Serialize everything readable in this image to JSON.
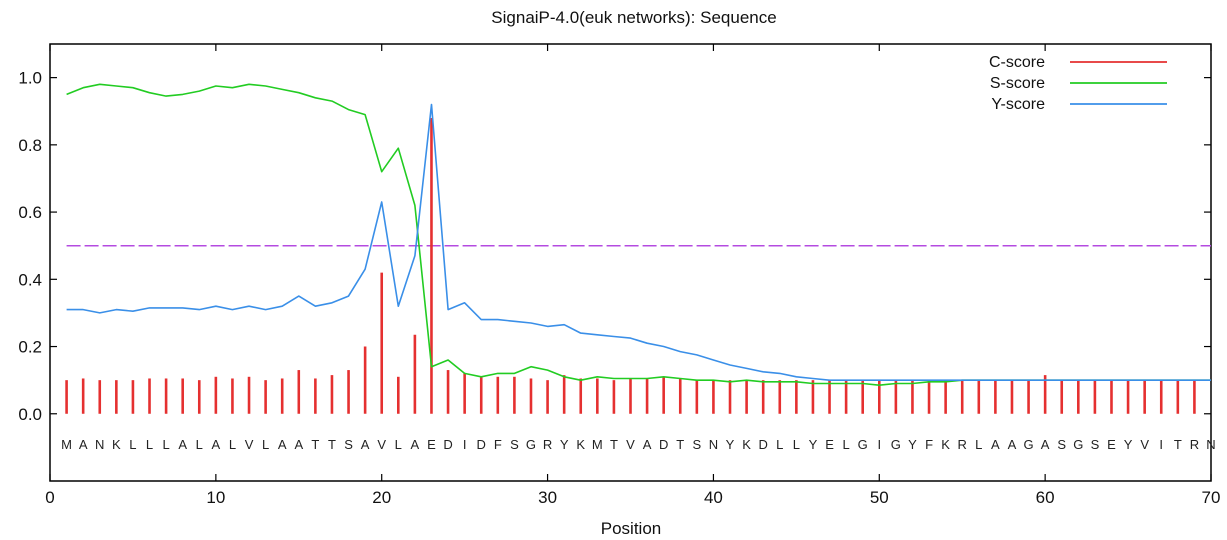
{
  "chart_data": {
    "type": "line",
    "title": "SignaiP-4.0(euk networks): Sequence",
    "xlabel": "Position",
    "ylabel": "",
    "xlim": [
      0,
      70
    ],
    "ylim": [
      -0.2,
      1.1
    ],
    "xticks": [
      0,
      10,
      20,
      30,
      40,
      50,
      60,
      70
    ],
    "yticks": [
      0.0,
      0.2,
      0.4,
      0.6,
      0.8,
      1.0
    ],
    "ytick_labels": [
      "0.0",
      "0.2",
      "0.4",
      "0.6",
      "0.8",
      "1.0"
    ],
    "grid": false,
    "legend_position": "top-right",
    "threshold": 0.5,
    "sequence": [
      "M",
      "A",
      "N",
      "K",
      "L",
      "L",
      "L",
      "A",
      "L",
      "A",
      "L",
      "V",
      "L",
      "A",
      "A",
      "T",
      "T",
      "S",
      "A",
      "V",
      "L",
      "A",
      "E",
      "D",
      "I",
      "D",
      "F",
      "S",
      "G",
      "R",
      "Y",
      "K",
      "M",
      "T",
      "V",
      "A",
      "D",
      "T",
      "S",
      "N",
      "Y",
      "K",
      "D",
      "L",
      "L",
      "Y",
      "E",
      "L",
      "G",
      "I",
      "G",
      "Y",
      "F",
      "K",
      "R",
      "L",
      "A",
      "A",
      "G",
      "A",
      "S",
      "G",
      "S",
      "E",
      "Y",
      "V",
      "I",
      "T",
      "R",
      "N"
    ],
    "series": [
      {
        "name": "C-score",
        "kind": "bar",
        "color": "#e53030",
        "x": [
          1,
          2,
          3,
          4,
          5,
          6,
          7,
          8,
          9,
          10,
          11,
          12,
          13,
          14,
          15,
          16,
          17,
          18,
          19,
          20,
          21,
          22,
          23,
          24,
          25,
          26,
          27,
          28,
          29,
          30,
          31,
          32,
          33,
          34,
          35,
          36,
          37,
          38,
          39,
          40,
          41,
          42,
          43,
          44,
          45,
          46,
          47,
          48,
          49,
          50,
          51,
          52,
          53,
          54,
          55,
          56,
          57,
          58,
          59,
          60,
          61,
          62,
          63,
          64,
          65,
          66,
          67,
          68,
          69
        ],
        "values": [
          0.1,
          0.105,
          0.1,
          0.1,
          0.1,
          0.105,
          0.105,
          0.105,
          0.1,
          0.11,
          0.105,
          0.11,
          0.1,
          0.105,
          0.13,
          0.105,
          0.115,
          0.13,
          0.2,
          0.42,
          0.11,
          0.235,
          0.88,
          0.13,
          0.12,
          0.11,
          0.11,
          0.11,
          0.105,
          0.1,
          0.115,
          0.105,
          0.105,
          0.1,
          0.105,
          0.105,
          0.11,
          0.105,
          0.1,
          0.1,
          0.1,
          0.1,
          0.1,
          0.1,
          0.1,
          0.1,
          0.1,
          0.1,
          0.1,
          0.1,
          0.1,
          0.1,
          0.1,
          0.1,
          0.1,
          0.1,
          0.1,
          0.1,
          0.1,
          0.115,
          0.1,
          0.1,
          0.1,
          0.1,
          0.1,
          0.1,
          0.1,
          0.1,
          0.1
        ]
      },
      {
        "name": "S-score",
        "kind": "line",
        "color": "#22cc22",
        "x": [
          1,
          2,
          3,
          4,
          5,
          6,
          7,
          8,
          9,
          10,
          11,
          12,
          13,
          14,
          15,
          16,
          17,
          18,
          19,
          20,
          21,
          22,
          23,
          24,
          25,
          26,
          27,
          28,
          29,
          30,
          31,
          32,
          33,
          34,
          35,
          36,
          37,
          38,
          39,
          40,
          41,
          42,
          43,
          44,
          45,
          46,
          47,
          48,
          49,
          50,
          51,
          52,
          53,
          54,
          55,
          56,
          57,
          58,
          59,
          60,
          61,
          62,
          63,
          64,
          65,
          66,
          67,
          68,
          69,
          70
        ],
        "values": [
          0.95,
          0.97,
          0.98,
          0.975,
          0.97,
          0.955,
          0.945,
          0.95,
          0.96,
          0.975,
          0.97,
          0.98,
          0.975,
          0.965,
          0.955,
          0.94,
          0.93,
          0.905,
          0.89,
          0.72,
          0.79,
          0.62,
          0.14,
          0.16,
          0.12,
          0.11,
          0.12,
          0.12,
          0.14,
          0.13,
          0.11,
          0.1,
          0.11,
          0.105,
          0.105,
          0.105,
          0.11,
          0.105,
          0.1,
          0.1,
          0.095,
          0.1,
          0.095,
          0.095,
          0.095,
          0.09,
          0.09,
          0.09,
          0.09,
          0.085,
          0.09,
          0.09,
          0.095,
          0.095,
          0.1,
          0.1,
          0.1,
          0.1,
          0.1,
          0.1,
          0.1,
          0.1,
          0.1,
          0.1,
          0.1,
          0.1,
          0.1,
          0.1,
          0.1,
          0.1
        ]
      },
      {
        "name": "Y-score",
        "kind": "line",
        "color": "#3a8fe8",
        "x": [
          1,
          2,
          3,
          4,
          5,
          6,
          7,
          8,
          9,
          10,
          11,
          12,
          13,
          14,
          15,
          16,
          17,
          18,
          19,
          20,
          21,
          22,
          23,
          24,
          25,
          26,
          27,
          28,
          29,
          30,
          31,
          32,
          33,
          34,
          35,
          36,
          37,
          38,
          39,
          40,
          41,
          42,
          43,
          44,
          45,
          46,
          47,
          48,
          49,
          50,
          51,
          52,
          53,
          54,
          55,
          56,
          57,
          58,
          59,
          60,
          61,
          62,
          63,
          64,
          65,
          66,
          67,
          68,
          69,
          70
        ],
        "values": [
          0.31,
          0.31,
          0.3,
          0.31,
          0.305,
          0.315,
          0.315,
          0.315,
          0.31,
          0.32,
          0.31,
          0.32,
          0.31,
          0.32,
          0.35,
          0.32,
          0.33,
          0.35,
          0.43,
          0.63,
          0.32,
          0.47,
          0.92,
          0.31,
          0.33,
          0.28,
          0.28,
          0.275,
          0.27,
          0.26,
          0.265,
          0.24,
          0.235,
          0.23,
          0.225,
          0.21,
          0.2,
          0.185,
          0.175,
          0.16,
          0.145,
          0.135,
          0.125,
          0.12,
          0.11,
          0.105,
          0.1,
          0.1,
          0.1,
          0.1,
          0.1,
          0.1,
          0.1,
          0.1,
          0.1,
          0.1,
          0.1,
          0.1,
          0.1,
          0.1,
          0.1,
          0.1,
          0.1,
          0.1,
          0.1,
          0.1,
          0.1,
          0.1,
          0.1,
          0.1
        ]
      }
    ]
  }
}
